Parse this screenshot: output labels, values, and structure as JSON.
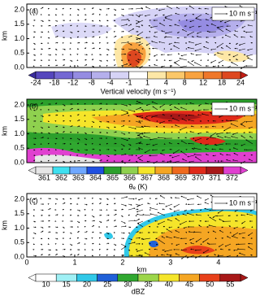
{
  "xlim": [
    0,
    4.8
  ],
  "ylim": [
    0,
    2.2
  ],
  "xticks": [
    0,
    1,
    2,
    3,
    4
  ],
  "xlabel": "km",
  "ylabel": "km",
  "yticks": [
    {
      "value": 0,
      "label": "0.0"
    },
    {
      "value": 0.5,
      "label": "0.5"
    },
    {
      "value": 1,
      "label": "1.0"
    },
    {
      "value": 1.5,
      "label": "1.5"
    },
    {
      "value": 2,
      "label": "2.0"
    }
  ],
  "panels": [
    {
      "label": "(a)",
      "vector_scale": "10 m s⁻¹",
      "colorbar": {
        "ticks": [
          -24,
          -18,
          -12,
          -8,
          -4,
          -1,
          1,
          4,
          8,
          12,
          18,
          24
        ],
        "colors": [
          "#3a2c9e",
          "#5546bd",
          "#7468d3",
          "#958ce2",
          "#b5afec",
          "#d6d3f6",
          "#ffffff",
          "#fde7a6",
          "#fbc769",
          "#f8a23f",
          "#ef772a",
          "#de4820",
          "#c21e14"
        ],
        "label": "Vertical velocity (m s⁻¹)"
      }
    },
    {
      "label": "(b)",
      "vector_scale": "10 m s⁻¹",
      "colorbar": {
        "ticks": [
          361,
          362,
          363,
          364,
          365,
          366,
          367,
          368,
          369,
          370,
          371,
          372
        ],
        "colors": [
          "#e6e6e6",
          "#3fe0f0",
          "#6fa8ff",
          "#2050e0",
          "#2ca02c",
          "#8fd14f",
          "#f5e52a",
          "#f5a623",
          "#f06a1e",
          "#e02a1a",
          "#a81818",
          "#e040d0"
        ],
        "label": "θₑ (K)"
      }
    },
    {
      "label": "(c)",
      "vector_scale": "10 m s⁻¹",
      "colorbar": {
        "ticks": [
          10,
          15,
          20,
          25,
          30,
          35,
          40,
          45,
          50,
          55
        ],
        "colors": [
          "#ffffff",
          "#9ff0f5",
          "#30c8e8",
          "#2060d8",
          "#30a830",
          "#9cd64a",
          "#f5e52a",
          "#f5a623",
          "#e8401a",
          "#a81818"
        ],
        "label": "dBZ"
      }
    }
  ]
}
